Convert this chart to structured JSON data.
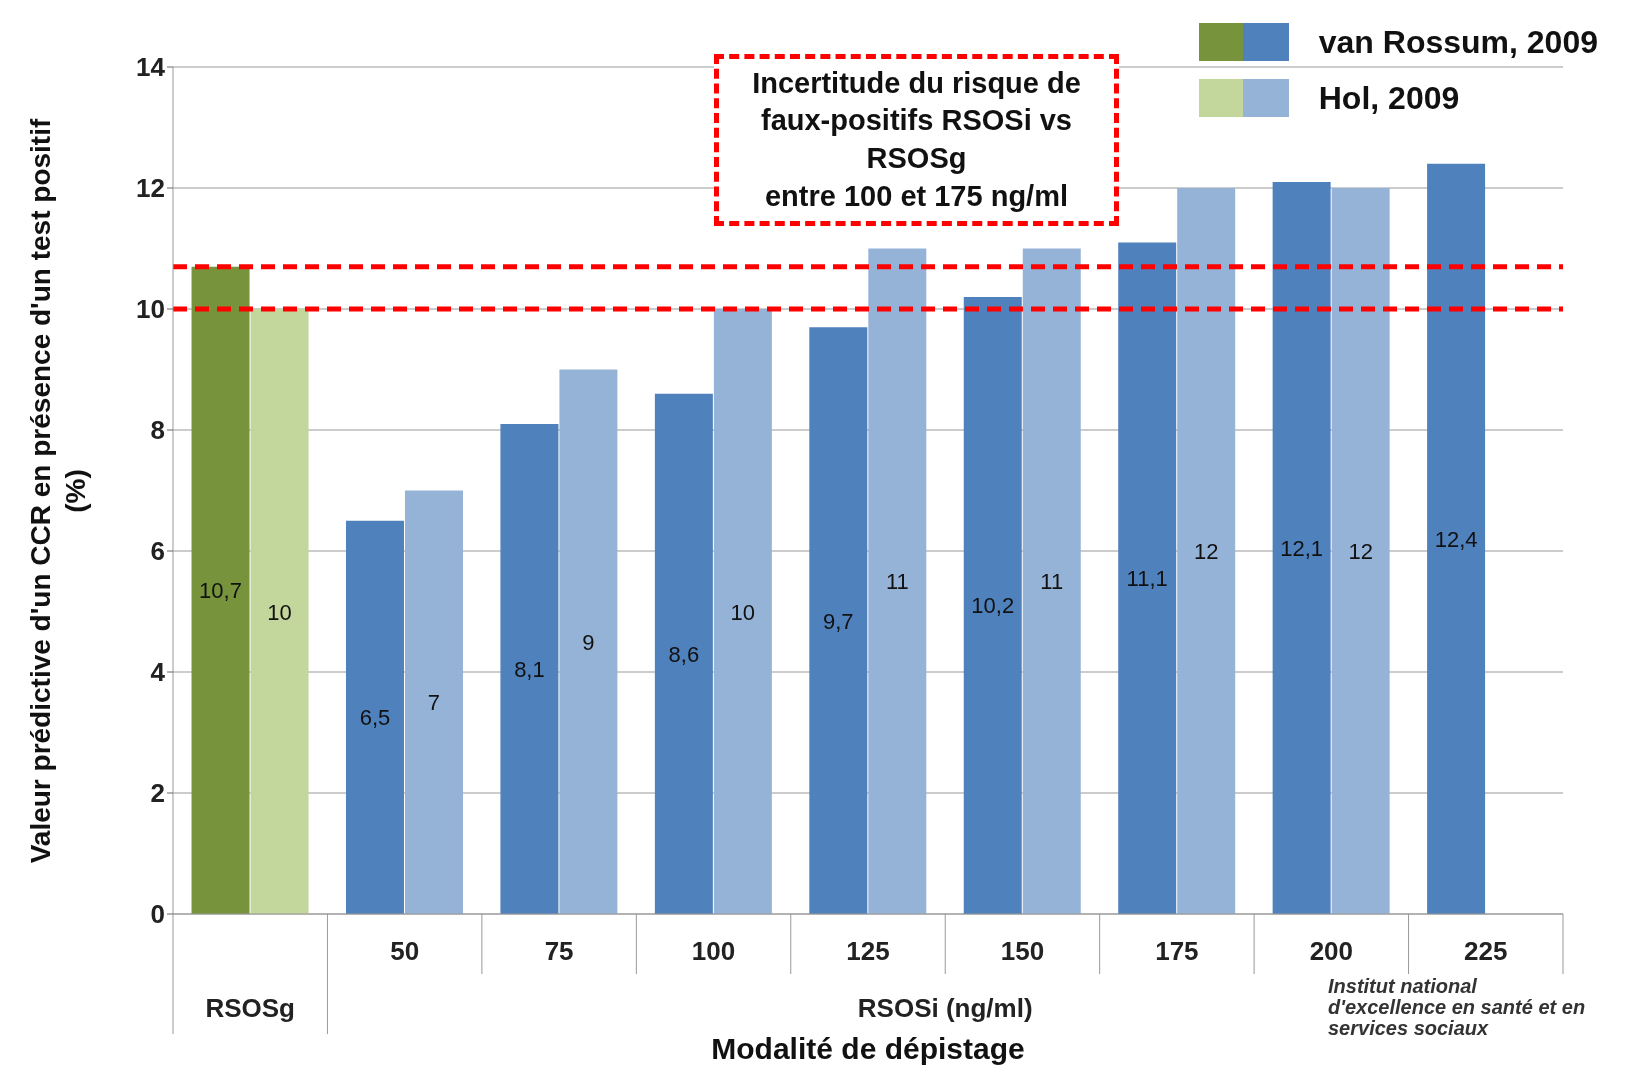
{
  "chart_data": {
    "type": "bar",
    "categories": [
      null,
      "50",
      "75",
      "100",
      "125",
      "150",
      "175",
      "200",
      "225"
    ],
    "series": [
      {
        "name": "van Rossum, 2009",
        "color": "#4f81bd",
        "colors": [
          "#77933c",
          "#4f81bd",
          "#4f81bd",
          "#4f81bd",
          "#4f81bd",
          "#4f81bd",
          "#4f81bd",
          "#4f81bd",
          "#4f81bd"
        ],
        "values": [
          10.7,
          6.5,
          8.1,
          8.6,
          9.7,
          10.2,
          11.1,
          12.1,
          12.4
        ],
        "value_labels": [
          "10,7",
          "6,5",
          "8,1",
          "8,6",
          "9,7",
          "10,2",
          "11,1",
          "12,1",
          "12,4"
        ]
      },
      {
        "name": "Hol, 2009",
        "color": "#95b3d7",
        "colors": [
          "#c3d69b",
          "#95b3d7",
          "#95b3d7",
          "#95b3d7",
          "#95b3d7",
          "#95b3d7",
          "#95b3d7",
          "#95b3d7",
          "#95b3d7"
        ],
        "values": [
          10,
          7,
          9,
          10,
          11,
          11,
          12,
          12,
          null
        ],
        "value_labels": [
          "10",
          "7",
          "9",
          "10",
          "11",
          "11",
          "12",
          "12",
          null
        ]
      }
    ],
    "ylim": [
      0,
      14
    ],
    "yticks": [
      0,
      2,
      4,
      6,
      8,
      10,
      12,
      14
    ],
    "ylabel": "Valeur prédictive d'un CCR en présence d'un test positif (%)",
    "xlabel": "Modalité de dépistage",
    "grid": "y",
    "legend": "top right",
    "ref_lines": [
      {
        "axis": "y",
        "value": 10.7,
        "color": "#ff0000",
        "line_style": "dashed"
      },
      {
        "axis": "y",
        "value": 10,
        "color": "#ff0000",
        "line_style": "dashed"
      }
    ],
    "annotations": [
      "RSOSg",
      "Incertitude du risque de faux-positifs RSOSi vs RSOSg\nentre 100 et 175 ng/ml",
      "RSOSi (ng/ml)",
      "Institut national d'excellence en santé et en services sociaux"
    ]
  }
}
